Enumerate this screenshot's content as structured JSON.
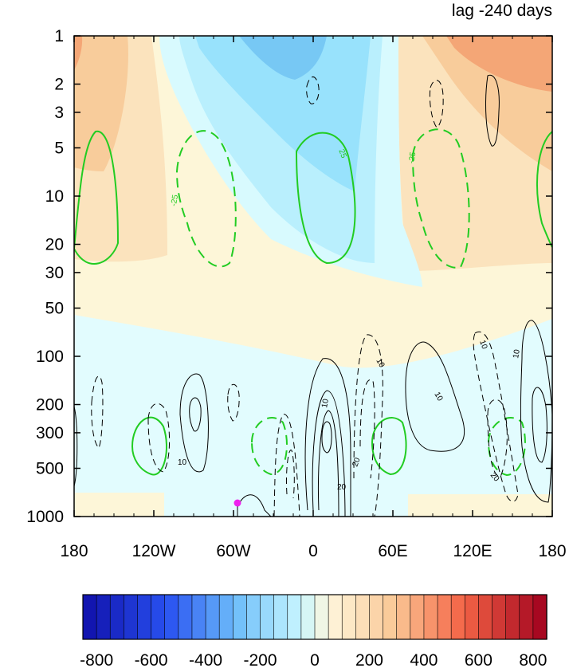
{
  "chart_data": {
    "type": "heatmap",
    "title": "lag -240 days",
    "xlabel": "",
    "ylabel": "",
    "x_ticks": [
      "180",
      "120W",
      "60W",
      "0",
      "60E",
      "120E",
      "180"
    ],
    "y_ticks": [
      "1",
      "2",
      "3",
      "5",
      "10",
      "20",
      "30",
      "50",
      "100",
      "200",
      "300",
      "500",
      "1000"
    ],
    "y_scale": "log",
    "y_inverted": true,
    "xlim": [
      -180,
      180
    ],
    "ylim": [
      1000,
      1
    ],
    "colorbar": {
      "ticks": [
        "-800",
        "-600",
        "-400",
        "-200",
        "0",
        "200",
        "400",
        "600",
        "800"
      ],
      "range": [
        -850,
        850
      ],
      "interval": 50
    },
    "contour_labels": {
      "black": [
        "10",
        "10",
        "10",
        "10",
        "20",
        "20",
        "20",
        "10",
        "10"
      ],
      "green": [
        "-25",
        "25",
        "-25"
      ]
    },
    "marker": {
      "lon": -60,
      "p": 850,
      "color": "#ee22ee"
    },
    "colors": {
      "positive_fill": "#fbe3bd",
      "negative_fill": "#d8fafe",
      "green_contour": "#22cc22"
    }
  }
}
